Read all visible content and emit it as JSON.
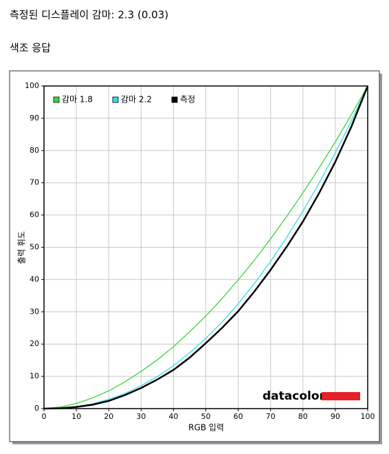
{
  "header": {
    "title": "측정된 디스플레이 감마: 2.3 (0.03)",
    "subtitle": "색조 응답"
  },
  "chart_data": {
    "type": "line",
    "x_label": "RGB 입력",
    "y_label": "출력 휘도",
    "logo": "datacolor",
    "x": [
      0,
      5,
      10,
      15,
      20,
      25,
      30,
      35,
      40,
      45,
      50,
      55,
      60,
      65,
      70,
      75,
      80,
      85,
      90,
      95,
      100
    ],
    "series": [
      {
        "name": "감마 1.8",
        "color": "#3ad63a",
        "values": [
          0,
          0.5,
          1.6,
          3.3,
          5.5,
          8.3,
          11.5,
          15.1,
          19.2,
          23.8,
          28.7,
          34.1,
          39.9,
          46.0,
          52.6,
          59.6,
          66.9,
          74.6,
          82.7,
          91.2,
          100
        ]
      },
      {
        "name": "감마 2.2",
        "color": "#35dcec",
        "values": [
          0,
          0.1,
          0.6,
          1.5,
          2.9,
          4.7,
          7.1,
          9.9,
          13.3,
          17.3,
          21.8,
          26.8,
          32.5,
          38.8,
          45.6,
          53.1,
          61.2,
          69.9,
          79.3,
          89.3,
          100
        ]
      },
      {
        "name": "측정",
        "color": "#000000",
        "values": [
          0,
          0.1,
          0.5,
          1.2,
          2.4,
          4.2,
          6.4,
          9.0,
          12.0,
          15.8,
          20.3,
          25.0,
          30.2,
          36.3,
          43.0,
          50.2,
          58.0,
          66.8,
          76.5,
          87.5,
          100
        ]
      }
    ],
    "xlim": [
      0,
      100
    ],
    "ylim": [
      0,
      100
    ],
    "xticks": [
      0,
      10,
      20,
      30,
      40,
      50,
      60,
      70,
      80,
      90,
      100
    ],
    "yticks": [
      0,
      10,
      20,
      30,
      40,
      50,
      60,
      70,
      80,
      90,
      100
    ],
    "grid": true,
    "legend": "top-left"
  }
}
